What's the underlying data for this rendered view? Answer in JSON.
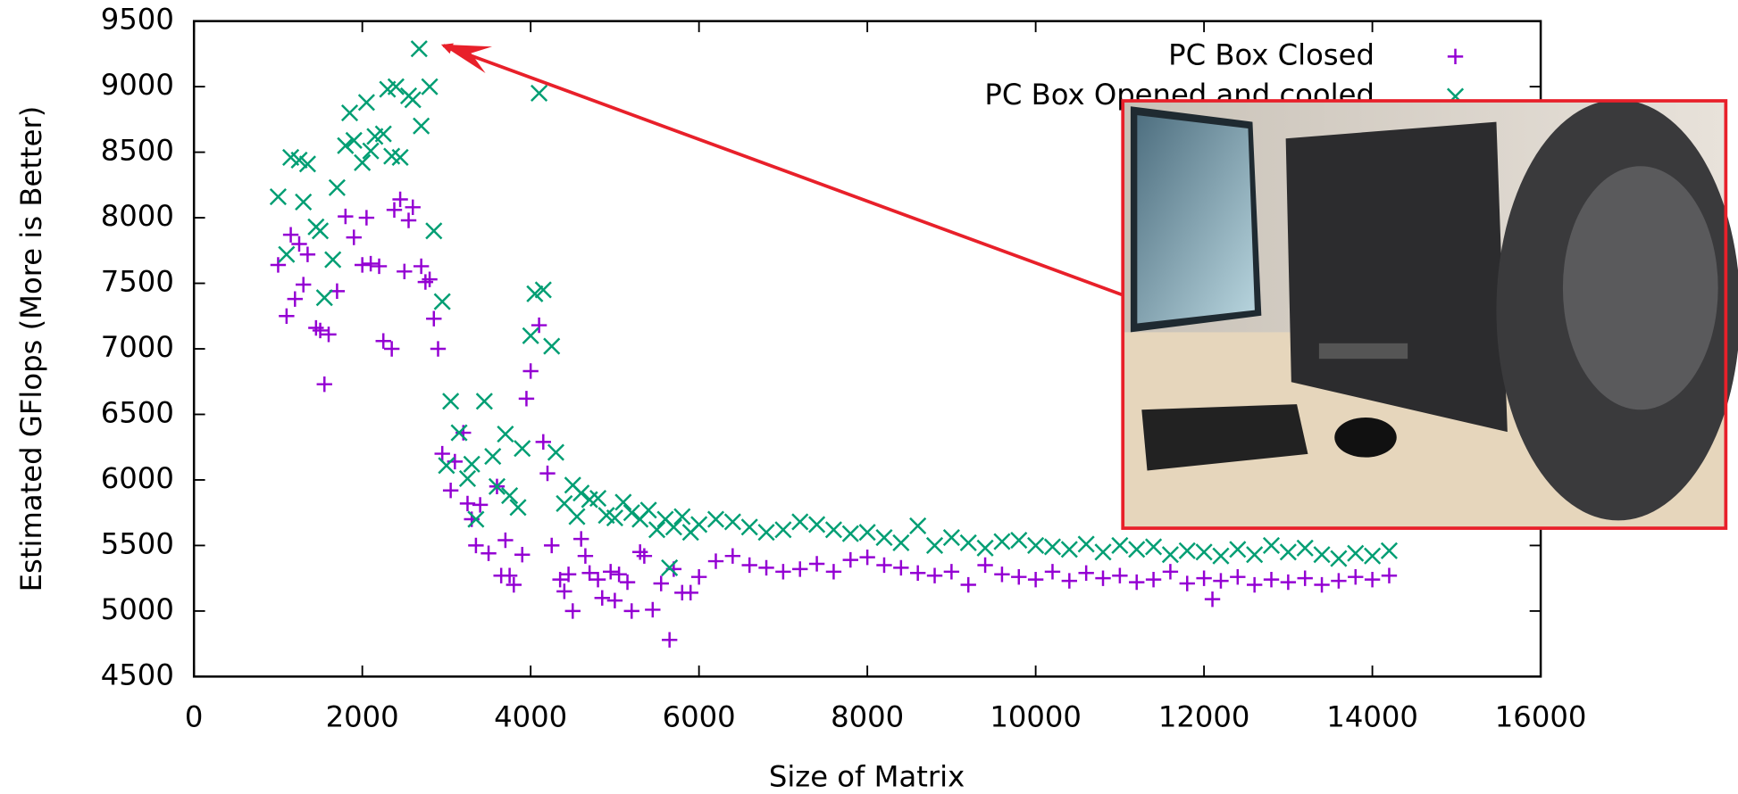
{
  "chart_data": {
    "type": "scatter",
    "xlabel": "Size of Matrix",
    "ylabel": "Estimated GFlops (More is Better)",
    "xlim": [
      0,
      16000
    ],
    "ylim": [
      4500,
      9500
    ],
    "xticks": [
      0,
      2000,
      4000,
      6000,
      8000,
      10000,
      12000,
      14000,
      16000
    ],
    "yticks": [
      4500,
      5000,
      5500,
      6000,
      6500,
      7000,
      7500,
      8000,
      8500,
      9000,
      9500
    ],
    "legend": "upper right",
    "series": [
      {
        "name": "PC Box Closed",
        "color": "#9400d3",
        "marker": "+",
        "x": [
          1000,
          1100,
          1150,
          1200,
          1250,
          1300,
          1350,
          1450,
          1500,
          1550,
          1600,
          1700,
          1800,
          1900,
          2000,
          2050,
          2100,
          2200,
          2250,
          2350,
          2380,
          2450,
          2500,
          2550,
          2600,
          2700,
          2750,
          2800,
          2850,
          2900,
          2950,
          3050,
          3100,
          3200,
          3250,
          3300,
          3350,
          3400,
          3500,
          3600,
          3650,
          3700,
          3750,
          3800,
          3900,
          3950,
          4000,
          4100,
          4150,
          4200,
          4250,
          4350,
          4400,
          4450,
          4500,
          4600,
          4650,
          4700,
          4800,
          4850,
          4950,
          5000,
          5050,
          5150,
          5200,
          5300,
          5350,
          5450,
          5550,
          5650,
          5700,
          5800,
          5900,
          6000,
          6200,
          6400,
          6600,
          6800,
          7000,
          7200,
          7400,
          7600,
          7800,
          8000,
          8200,
          8400,
          8600,
          8800,
          9000,
          9200,
          9400,
          9600,
          9800,
          10000,
          10200,
          10400,
          10600,
          10800,
          11000,
          11200,
          11400,
          11600,
          11800,
          12000,
          12100,
          12200,
          12400,
          12600,
          12800,
          13000,
          13200,
          13400,
          13600,
          13800,
          14000,
          14200
        ],
        "values": [
          7640,
          7250,
          7870,
          7380,
          7800,
          7490,
          7720,
          7160,
          7140,
          6730,
          7110,
          7440,
          8010,
          7850,
          7640,
          8000,
          7650,
          7630,
          7060,
          7000,
          8060,
          8140,
          7590,
          7980,
          8080,
          7630,
          7510,
          7530,
          7230,
          7000,
          6200,
          5920,
          6140,
          6360,
          5820,
          5700,
          5500,
          5810,
          5440,
          5950,
          5270,
          5540,
          5270,
          5200,
          5430,
          6620,
          6830,
          7180,
          6290,
          6050,
          5500,
          5240,
          5150,
          5280,
          5000,
          5550,
          5420,
          5290,
          5240,
          5100,
          5300,
          5080,
          5280,
          5220,
          5000,
          5450,
          5420,
          5010,
          5210,
          4780,
          5320,
          5140,
          5140,
          5260,
          5380,
          5420,
          5350,
          5330,
          5300,
          5320,
          5360,
          5300,
          5390,
          5410,
          5350,
          5330,
          5290,
          5270,
          5300,
          5200,
          5350,
          5280,
          5260,
          5240,
          5300,
          5230,
          5290,
          5250,
          5270,
          5220,
          5240,
          5300,
          5210,
          5250,
          5090,
          5230,
          5260,
          5200,
          5240,
          5220,
          5250,
          5200,
          5230,
          5260,
          5240,
          5270
        ]
      },
      {
        "name": "PC Box Opened and cooled",
        "color": "#009e73",
        "marker": "x",
        "x": [
          1000,
          1100,
          1150,
          1250,
          1300,
          1350,
          1450,
          1500,
          1550,
          1650,
          1700,
          1800,
          1850,
          1900,
          2000,
          2050,
          2100,
          2150,
          2250,
          2300,
          2350,
          2400,
          2450,
          2550,
          2600,
          2700,
          2675,
          2800,
          2850,
          2950,
          3000,
          3050,
          3150,
          3250,
          3300,
          3350,
          3450,
          3550,
          3600,
          3700,
          3750,
          3850,
          3900,
          4000,
          4050,
          4100,
          4150,
          4250,
          4300,
          4400,
          4500,
          4550,
          4600,
          4700,
          4800,
          4900,
          5000,
          5100,
          5200,
          5300,
          5400,
          5500,
          5600,
          5650,
          5700,
          5800,
          5900,
          6000,
          6200,
          6400,
          6600,
          6800,
          7000,
          7200,
          7400,
          7600,
          7800,
          8000,
          8200,
          8400,
          8600,
          8800,
          9000,
          9200,
          9400,
          9600,
          9800,
          10000,
          10200,
          10400,
          10600,
          10800,
          11000,
          11200,
          11400,
          11600,
          11800,
          12000,
          12200,
          12400,
          12600,
          12800,
          13000,
          13200,
          13400,
          13600,
          13800,
          14000,
          14200
        ],
        "values": [
          8160,
          7720,
          8460,
          8440,
          8120,
          8410,
          7930,
          7900,
          7390,
          7680,
          8230,
          8550,
          8800,
          8590,
          8420,
          8880,
          8510,
          8620,
          8640,
          8980,
          8470,
          9000,
          8460,
          8930,
          8900,
          8700,
          9289,
          9000,
          7900,
          7360,
          6110,
          6600,
          6360,
          6010,
          6120,
          5700,
          6600,
          6180,
          5950,
          6350,
          5880,
          5790,
          6240,
          7100,
          7420,
          8950,
          7450,
          7020,
          6210,
          5820,
          5960,
          5720,
          5900,
          5850,
          5860,
          5730,
          5710,
          5830,
          5750,
          5700,
          5770,
          5620,
          5700,
          5330,
          5640,
          5720,
          5600,
          5660,
          5700,
          5680,
          5640,
          5600,
          5620,
          5680,
          5660,
          5620,
          5590,
          5600,
          5560,
          5520,
          5650,
          5500,
          5560,
          5520,
          5480,
          5530,
          5540,
          5500,
          5490,
          5470,
          5510,
          5450,
          5500,
          5470,
          5490,
          5430,
          5460,
          5450,
          5420,
          5470,
          5430,
          5500,
          5450,
          5480,
          5430,
          5400,
          5440,
          5420,
          5460
        ]
      }
    ]
  }
}
